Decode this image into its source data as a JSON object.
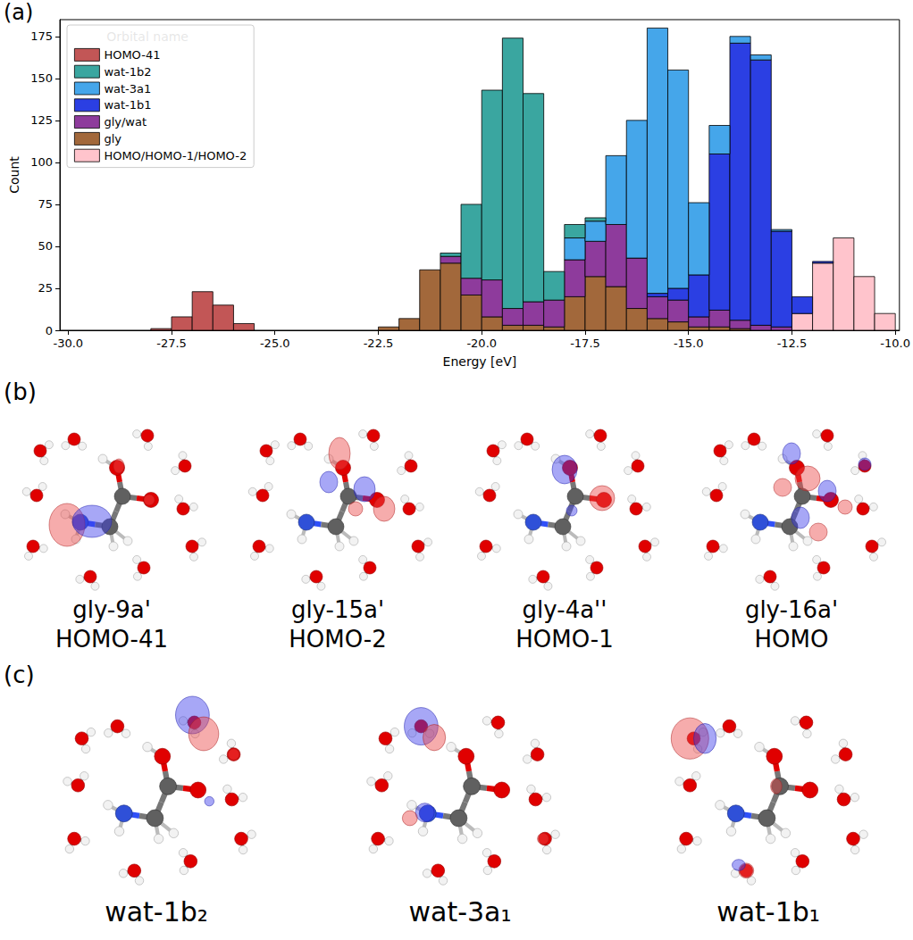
{
  "chart_data": {
    "type": "histogram",
    "x_label": "Energy [eV]",
    "y_label": "Count",
    "legend_title": "Orbital name",
    "legend": "upper left",
    "stacked": true,
    "grid": false,
    "xlim": [
      -30.2,
      -9.9
    ],
    "xticks": [
      {
        "value": -30,
        "label": "-30.0"
      },
      {
        "value": -27.5,
        "label": "-27.5"
      },
      {
        "value": -25,
        "label": "-25.0"
      },
      {
        "value": -22.5,
        "label": "-22.5"
      },
      {
        "value": -20,
        "label": "-20.0"
      },
      {
        "value": -17.5,
        "label": "-17.5"
      },
      {
        "value": -15,
        "label": "-15.0"
      },
      {
        "value": -12.5,
        "label": "-12.5"
      },
      {
        "value": -10,
        "label": "-10.0"
      }
    ],
    "ylim": [
      0,
      185
    ],
    "yticks": [
      0,
      25,
      50,
      75,
      100,
      125,
      150,
      175
    ],
    "bins": [
      -28,
      -27.5,
      -27,
      -26.5,
      -26,
      -25.5,
      -25,
      -24.5,
      -24,
      -23.5,
      -23,
      -22.5,
      -22,
      -21.5,
      -21,
      -20.5,
      -20,
      -19.5,
      -19,
      -18.5,
      -18,
      -17.5,
      -17,
      -16.5,
      -16,
      -15.5,
      -15,
      -14.5,
      -14,
      -13.5,
      -13,
      -12.5,
      -12,
      -11.5,
      -11,
      -10.5,
      -10
    ],
    "series": [
      {
        "name": "HOMO-41",
        "color": "#c25656",
        "values": [
          1,
          8,
          23,
          15,
          4,
          0,
          0,
          0,
          0,
          0,
          0,
          0,
          0,
          0,
          0,
          0,
          0,
          0,
          0,
          0,
          0,
          0,
          0,
          0,
          0,
          0,
          0,
          0,
          0,
          0,
          0,
          0,
          0,
          0,
          0,
          0
        ]
      },
      {
        "name": "wat-1b2",
        "color": "#3aa6a0",
        "values": [
          0,
          0,
          0,
          0,
          0,
          0,
          0,
          0,
          0,
          0,
          0,
          0,
          0,
          0,
          2,
          44,
          113,
          161,
          124,
          17,
          8,
          2,
          0,
          0,
          0,
          0,
          0,
          0,
          0,
          0,
          0,
          0,
          0,
          0,
          0,
          0
        ]
      },
      {
        "name": "wat-3a1",
        "color": "#45a6ea",
        "values": [
          0,
          0,
          0,
          0,
          0,
          0,
          0,
          0,
          0,
          0,
          0,
          0,
          0,
          0,
          0,
          0,
          0,
          0,
          0,
          0,
          13,
          12,
          41,
          82,
          158,
          130,
          43,
          17,
          4,
          3,
          1,
          0,
          0,
          0,
          0,
          0
        ]
      },
      {
        "name": "wat-1b1",
        "color": "#2b3fe3",
        "values": [
          0,
          0,
          0,
          0,
          0,
          0,
          0,
          0,
          0,
          0,
          0,
          0,
          0,
          0,
          0,
          0,
          0,
          0,
          0,
          0,
          0,
          0,
          0,
          0,
          2,
          7,
          25,
          93,
          165,
          158,
          57,
          10,
          1,
          0,
          0,
          0
        ]
      },
      {
        "name": "gly/wat",
        "color": "#8e3b9c",
        "values": [
          0,
          0,
          0,
          0,
          0,
          0,
          0,
          0,
          0,
          0,
          0,
          0,
          0,
          0,
          4,
          10,
          22,
          10,
          14,
          16,
          22,
          21,
          37,
          30,
          13,
          13,
          6,
          10,
          5,
          3,
          2,
          0,
          0,
          0,
          0,
          0
        ]
      },
      {
        "name": "gly",
        "color": "#a2683b",
        "values": [
          0,
          0,
          0,
          0,
          0,
          0,
          0,
          0,
          0,
          0,
          0,
          2,
          7,
          36,
          40,
          21,
          8,
          3,
          3,
          2,
          20,
          32,
          26,
          13,
          7,
          5,
          2,
          2,
          1,
          0,
          0,
          0,
          0,
          0,
          0,
          0
        ]
      },
      {
        "name": "HOMO/HOMO-1/HOMO-2",
        "color": "#ffc4cc",
        "values": [
          0,
          0,
          0,
          0,
          0,
          0,
          0,
          0,
          0,
          0,
          0,
          0,
          0,
          0,
          0,
          0,
          0,
          0,
          0,
          0,
          0,
          0,
          0,
          0,
          0,
          0,
          0,
          0,
          0,
          0,
          0,
          10,
          40,
          55,
          32,
          10
        ]
      }
    ]
  },
  "panel_labels": [
    "(a)",
    "(b)",
    "(c)"
  ],
  "orbitals_b": [
    {
      "name": "gly-9a'",
      "label": "HOMO-41"
    },
    {
      "name": "gly-15a'",
      "label": "HOMO-2"
    },
    {
      "name": "gly-4a''",
      "label": "HOMO-1"
    },
    {
      "name": "gly-16a'",
      "label": "HOMO"
    }
  ],
  "orbitals_c": [
    "wat-1b₂",
    "wat-3a₁",
    "wat-1b₁"
  ]
}
